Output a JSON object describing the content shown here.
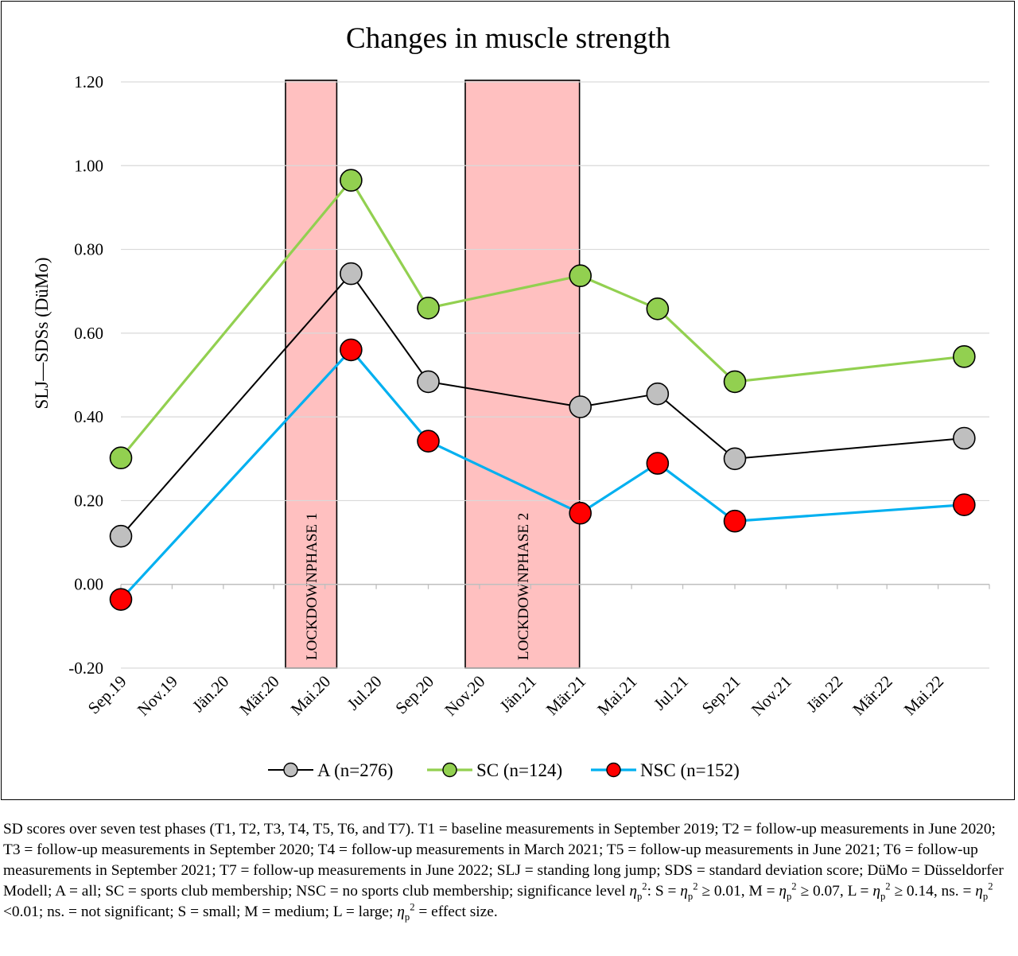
{
  "chart_data": {
    "type": "line",
    "title": "Changes in muscle strength",
    "ylabel": "SLJ—SDSs (DüMo)",
    "xlabel": "",
    "ylim": [
      -0.2,
      1.2
    ],
    "y_ticks": [
      "1.20",
      "1.00",
      "0.80",
      "0.60",
      "0.40",
      "0.20",
      "0.00",
      "-0.20"
    ],
    "x_tick_labels": [
      "Sep.19",
      "Nov.19",
      "Jän.20",
      "Mär.20",
      "Mai.20",
      "Jul.20",
      "Sep.20",
      "Nov.20",
      "Jän.21",
      "Mär.21",
      "Mai.21",
      "Jul.21",
      "Sep.21",
      "Nov.21",
      "Jän.22",
      "Mär.22",
      "Mai.22"
    ],
    "x_tick_dates": [
      "2019-09-01",
      "2019-11-01",
      "2020-01-01",
      "2020-03-01",
      "2020-05-01",
      "2020-07-01",
      "2020-09-01",
      "2020-11-01",
      "2021-01-01",
      "2021-03-01",
      "2021-05-01",
      "2021-07-01",
      "2021-09-01",
      "2021-11-01",
      "2022-01-01",
      "2022-03-01",
      "2022-05-01"
    ],
    "x_axis_end": "2022-07-01",
    "x": [
      "2019-09-01",
      "2020-06-01",
      "2020-09-01",
      "2021-03-01",
      "2021-06-01",
      "2021-09-01",
      "2022-06-01"
    ],
    "series": [
      {
        "name": "A (n=276)",
        "values": [
          0.115,
          0.742,
          0.484,
          0.424,
          0.455,
          0.3,
          0.349
        ],
        "line_color": "#000000",
        "marker_color": "#bfbfbf"
      },
      {
        "name": "SC (n=124)",
        "values": [
          0.302,
          0.965,
          0.66,
          0.737,
          0.658,
          0.484,
          0.544
        ],
        "line_color": "#92d050",
        "marker_color": "#92d050"
      },
      {
        "name": "NSC (n=152)",
        "values": [
          -0.036,
          0.56,
          0.342,
          0.17,
          0.289,
          0.151,
          0.19
        ],
        "line_color": "#00b0f0",
        "marker_color": "#ff0000"
      }
    ],
    "shaded_regions": [
      {
        "label": "LOCKDOWNPHASE 1",
        "start": "2020-03-15",
        "end": "2020-05-15",
        "fill": "#ffc0c0"
      },
      {
        "label": "LOCKDOWNPHASE 2",
        "start": "2020-10-15",
        "end": "2021-02-28",
        "fill": "#ffc0c0"
      }
    ],
    "grid": true,
    "legend_position": "bottom"
  },
  "caption": {
    "seg1": "SD scores over seven test phases (T1, T2, T3, T4, T5, T6, and T7). T1 = baseline measurements in September 2019; T2 = follow-up measurements in June 2020; T3 = follow-up measurements in September 2020; T4 = follow-up measurements in March 2021; T5 = follow-up measurements in June 2021; T6 = follow-up measurements in September 2021; T7 = follow-up measurements in June 2022; SLJ = standing long jump; SDS = standard deviation score; DüMo = Düsseldorfer Modell; A = all; SC = sports club membership; NSC = no sports club membership; significance level ",
    "eta": "η",
    "sub_p": "p",
    "sup_2": "2",
    "seg2": ": S = ",
    "seg3": " ≥ 0.01, M = ",
    "seg4": " ≥ 0.07, L = ",
    "seg5": " ≥ 0.14, ns. = ",
    "seg6": " <0.01; ns. = not significant; S = small; M = medium; L = large; ",
    "seg7": " = effect size."
  }
}
